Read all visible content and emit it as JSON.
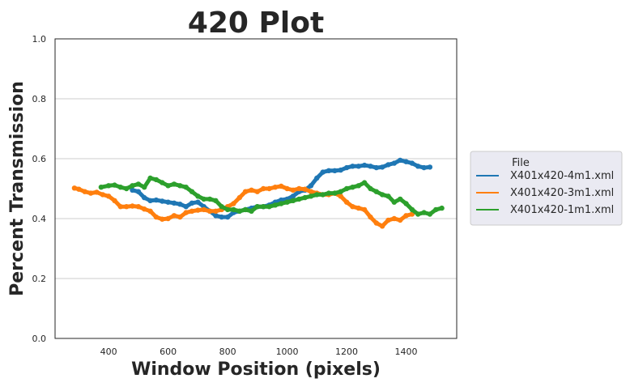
{
  "chart_data": {
    "type": "line",
    "title": "420 Plot",
    "xlabel": "Window Position (pixels)",
    "ylabel": "Percent Transmission",
    "xlim": [
      220,
      1570
    ],
    "ylim": [
      0.0,
      1.0
    ],
    "xticks": [
      400,
      600,
      800,
      1000,
      1200,
      1400
    ],
    "xtick_labels": [
      "400",
      "600",
      "800",
      "1000",
      "1200",
      "1400"
    ],
    "yticks": [
      0.0,
      0.2,
      0.4,
      0.6,
      0.8,
      1.0
    ],
    "ytick_labels": [
      "0.0",
      "0.2",
      "0.4",
      "0.6",
      "0.8",
      "1.0"
    ],
    "grid": "horizontal",
    "legend": {
      "title": "File",
      "placement": "right, outside plot"
    },
    "series": [
      {
        "name": "X401x420-4m1.xml",
        "color": "#1f77b4",
        "points": [
          [
            480,
            0.495
          ],
          [
            500,
            0.49
          ],
          [
            520,
            0.47
          ],
          [
            540,
            0.46
          ],
          [
            560,
            0.462
          ],
          [
            580,
            0.458
          ],
          [
            600,
            0.455
          ],
          [
            620,
            0.452
          ],
          [
            640,
            0.448
          ],
          [
            660,
            0.44
          ],
          [
            680,
            0.452
          ],
          [
            700,
            0.455
          ],
          [
            720,
            0.44
          ],
          [
            740,
            0.425
          ],
          [
            760,
            0.41
          ],
          [
            780,
            0.405
          ],
          [
            800,
            0.405
          ],
          [
            820,
            0.42
          ],
          [
            840,
            0.425
          ],
          [
            860,
            0.43
          ],
          [
            880,
            0.435
          ],
          [
            900,
            0.44
          ],
          [
            920,
            0.44
          ],
          [
            940,
            0.445
          ],
          [
            960,
            0.455
          ],
          [
            980,
            0.462
          ],
          [
            1000,
            0.465
          ],
          [
            1020,
            0.475
          ],
          [
            1040,
            0.49
          ],
          [
            1060,
            0.495
          ],
          [
            1080,
            0.51
          ],
          [
            1100,
            0.535
          ],
          [
            1120,
            0.555
          ],
          [
            1140,
            0.56
          ],
          [
            1160,
            0.56
          ],
          [
            1180,
            0.562
          ],
          [
            1200,
            0.57
          ],
          [
            1220,
            0.575
          ],
          [
            1240,
            0.575
          ],
          [
            1260,
            0.578
          ],
          [
            1280,
            0.575
          ],
          [
            1300,
            0.57
          ],
          [
            1320,
            0.572
          ],
          [
            1340,
            0.58
          ],
          [
            1360,
            0.585
          ],
          [
            1380,
            0.595
          ],
          [
            1400,
            0.59
          ],
          [
            1420,
            0.585
          ],
          [
            1440,
            0.575
          ],
          [
            1460,
            0.57
          ],
          [
            1480,
            0.572
          ]
        ]
      },
      {
        "name": "X401x420-3m1.xml",
        "color": "#ff7f0e",
        "points": [
          [
            285,
            0.502
          ],
          [
            300,
            0.498
          ],
          [
            320,
            0.49
          ],
          [
            340,
            0.485
          ],
          [
            360,
            0.488
          ],
          [
            380,
            0.48
          ],
          [
            400,
            0.475
          ],
          [
            420,
            0.46
          ],
          [
            440,
            0.44
          ],
          [
            460,
            0.44
          ],
          [
            480,
            0.442
          ],
          [
            500,
            0.44
          ],
          [
            520,
            0.432
          ],
          [
            540,
            0.425
          ],
          [
            560,
            0.405
          ],
          [
            580,
            0.398
          ],
          [
            600,
            0.4
          ],
          [
            620,
            0.41
          ],
          [
            640,
            0.405
          ],
          [
            660,
            0.42
          ],
          [
            680,
            0.425
          ],
          [
            700,
            0.428
          ],
          [
            720,
            0.43
          ],
          [
            740,
            0.425
          ],
          [
            760,
            0.425
          ],
          [
            780,
            0.43
          ],
          [
            800,
            0.44
          ],
          [
            820,
            0.45
          ],
          [
            840,
            0.47
          ],
          [
            860,
            0.49
          ],
          [
            880,
            0.495
          ],
          [
            900,
            0.49
          ],
          [
            920,
            0.5
          ],
          [
            940,
            0.5
          ],
          [
            960,
            0.505
          ],
          [
            980,
            0.508
          ],
          [
            1000,
            0.5
          ],
          [
            1020,
            0.495
          ],
          [
            1040,
            0.5
          ],
          [
            1060,
            0.498
          ],
          [
            1080,
            0.49
          ],
          [
            1100,
            0.485
          ],
          [
            1120,
            0.48
          ],
          [
            1140,
            0.48
          ],
          [
            1160,
            0.485
          ],
          [
            1180,
            0.475
          ],
          [
            1200,
            0.455
          ],
          [
            1220,
            0.44
          ],
          [
            1240,
            0.435
          ],
          [
            1260,
            0.43
          ],
          [
            1280,
            0.405
          ],
          [
            1300,
            0.385
          ],
          [
            1320,
            0.375
          ],
          [
            1340,
            0.395
          ],
          [
            1360,
            0.4
          ],
          [
            1380,
            0.395
          ],
          [
            1400,
            0.41
          ],
          [
            1420,
            0.415
          ]
        ]
      },
      {
        "name": "X401x420-1m1.xml",
        "color": "#2ca02c",
        "points": [
          [
            375,
            0.505
          ],
          [
            400,
            0.51
          ],
          [
            420,
            0.512
          ],
          [
            440,
            0.505
          ],
          [
            460,
            0.5
          ],
          [
            480,
            0.51
          ],
          [
            500,
            0.515
          ],
          [
            520,
            0.505
          ],
          [
            540,
            0.535
          ],
          [
            560,
            0.53
          ],
          [
            580,
            0.52
          ],
          [
            600,
            0.51
          ],
          [
            620,
            0.515
          ],
          [
            640,
            0.51
          ],
          [
            660,
            0.505
          ],
          [
            680,
            0.49
          ],
          [
            700,
            0.475
          ],
          [
            720,
            0.465
          ],
          [
            740,
            0.465
          ],
          [
            760,
            0.46
          ],
          [
            780,
            0.44
          ],
          [
            800,
            0.43
          ],
          [
            820,
            0.43
          ],
          [
            840,
            0.425
          ],
          [
            860,
            0.43
          ],
          [
            880,
            0.425
          ],
          [
            900,
            0.44
          ],
          [
            920,
            0.44
          ],
          [
            940,
            0.44
          ],
          [
            960,
            0.445
          ],
          [
            980,
            0.45
          ],
          [
            1000,
            0.455
          ],
          [
            1020,
            0.46
          ],
          [
            1040,
            0.465
          ],
          [
            1060,
            0.47
          ],
          [
            1080,
            0.475
          ],
          [
            1100,
            0.48
          ],
          [
            1120,
            0.48
          ],
          [
            1140,
            0.485
          ],
          [
            1160,
            0.485
          ],
          [
            1180,
            0.49
          ],
          [
            1200,
            0.5
          ],
          [
            1220,
            0.505
          ],
          [
            1240,
            0.51
          ],
          [
            1260,
            0.52
          ],
          [
            1280,
            0.5
          ],
          [
            1300,
            0.49
          ],
          [
            1320,
            0.48
          ],
          [
            1340,
            0.475
          ],
          [
            1360,
            0.455
          ],
          [
            1380,
            0.465
          ],
          [
            1400,
            0.45
          ],
          [
            1420,
            0.43
          ],
          [
            1440,
            0.415
          ],
          [
            1460,
            0.42
          ],
          [
            1480,
            0.415
          ],
          [
            1500,
            0.43
          ],
          [
            1520,
            0.435
          ]
        ]
      }
    ]
  }
}
